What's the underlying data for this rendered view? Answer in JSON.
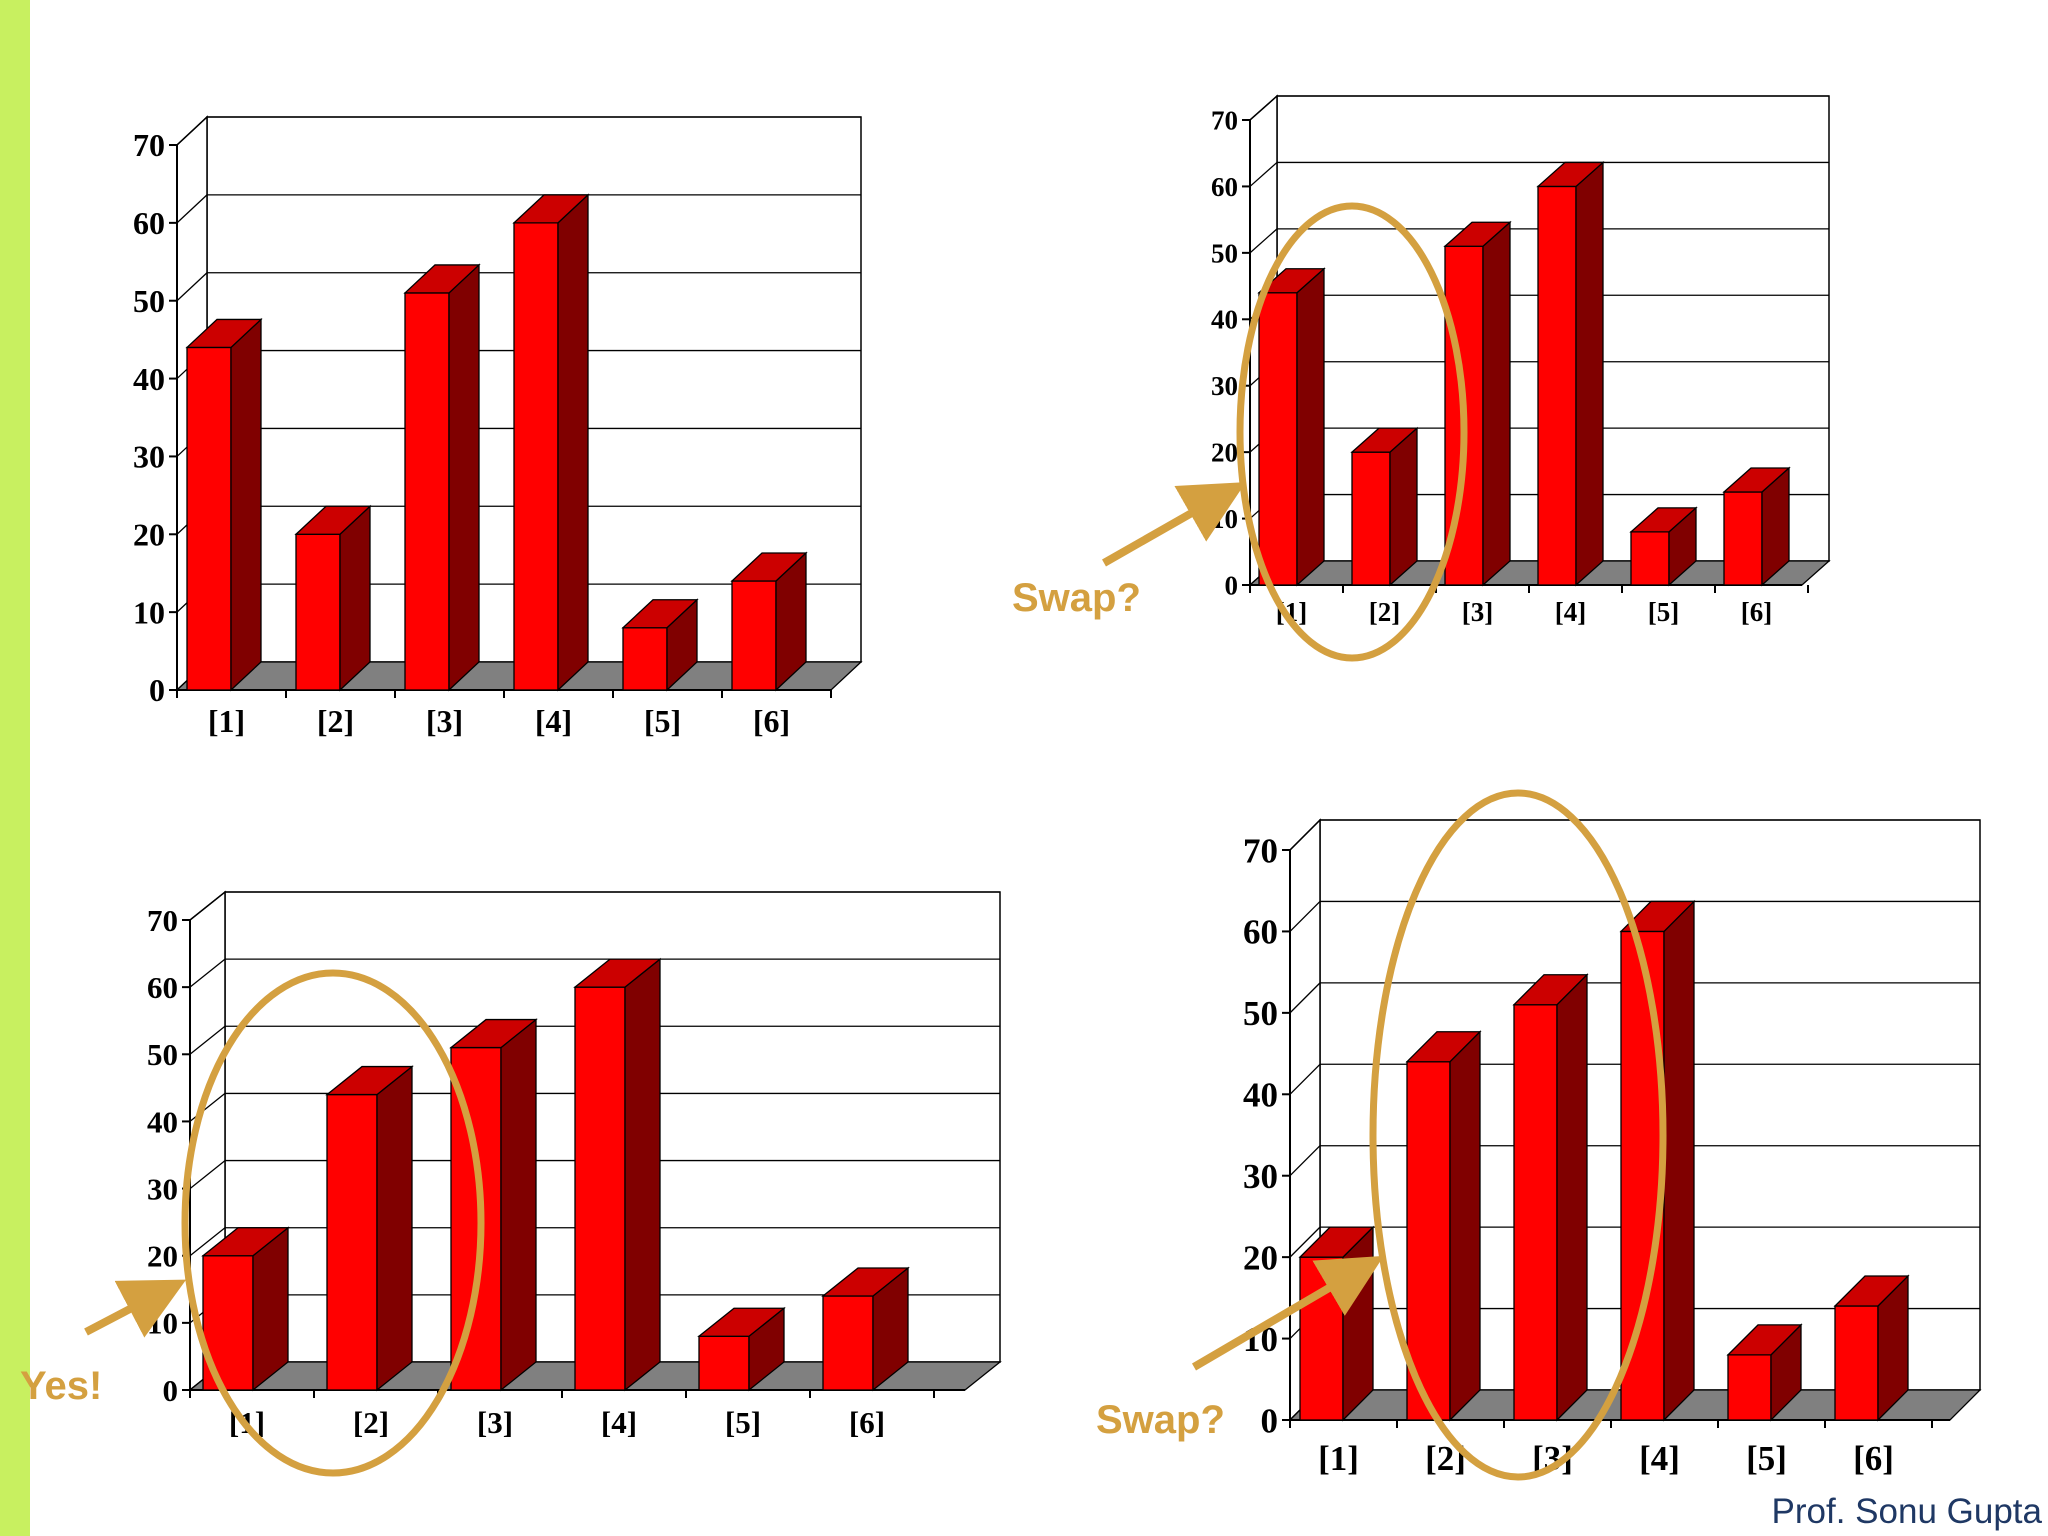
{
  "colors": {
    "sidebar": "#c8f060",
    "bar_front": "#ff0000",
    "bar_side": "#800000",
    "bar_top": "#cc0000",
    "floor": "#808080",
    "annotation": "#d4a040",
    "author": "#1f3864"
  },
  "author": "Prof. Sonu Gupta",
  "chart_data": [
    {
      "type": "bar",
      "categories": [
        "[1]",
        "[2]",
        "[3]",
        "[4]",
        "[5]",
        "[6]"
      ],
      "values": [
        44,
        20,
        51,
        60,
        8,
        14
      ],
      "ylim": [
        0,
        70
      ],
      "yticks": [
        "0",
        "10",
        "20",
        "30",
        "40",
        "50",
        "60",
        "70"
      ],
      "grid": true,
      "style": "3d-column"
    },
    {
      "type": "bar",
      "categories": [
        "[1]",
        "[2]",
        "[3]",
        "[4]",
        "[5]",
        "[6]"
      ],
      "values": [
        44,
        20,
        51,
        60,
        8,
        14
      ],
      "ylim": [
        0,
        70
      ],
      "yticks": [
        "0",
        "10",
        "20",
        "30",
        "40",
        "50",
        "60",
        "70"
      ],
      "grid": true,
      "style": "3d-column",
      "annotation": {
        "text": "Swap?",
        "circled_bars": [
          "[1]",
          "[2]"
        ]
      }
    },
    {
      "type": "bar",
      "categories": [
        "[1]",
        "[2]",
        "[3]",
        "[4]",
        "[5]",
        "[6]"
      ],
      "values": [
        20,
        44,
        51,
        60,
        8,
        14
      ],
      "ylim": [
        0,
        70
      ],
      "yticks": [
        "0",
        "10",
        "20",
        "30",
        "40",
        "50",
        "60",
        "70"
      ],
      "grid": true,
      "style": "3d-column",
      "annotation": {
        "text": "Yes!",
        "circled_bars": [
          "[1]",
          "[2]"
        ]
      }
    },
    {
      "type": "bar",
      "categories": [
        "[1]",
        "[2]",
        "[3]",
        "[4]",
        "[5]",
        "[6]"
      ],
      "values": [
        20,
        44,
        51,
        60,
        8,
        14
      ],
      "ylim": [
        0,
        70
      ],
      "yticks": [
        "0",
        "10",
        "20",
        "30",
        "40",
        "50",
        "60",
        "70"
      ],
      "grid": true,
      "style": "3d-column",
      "annotation": {
        "text": "Swap?",
        "circled_bars": [
          "[2]",
          "[3]"
        ]
      }
    }
  ]
}
